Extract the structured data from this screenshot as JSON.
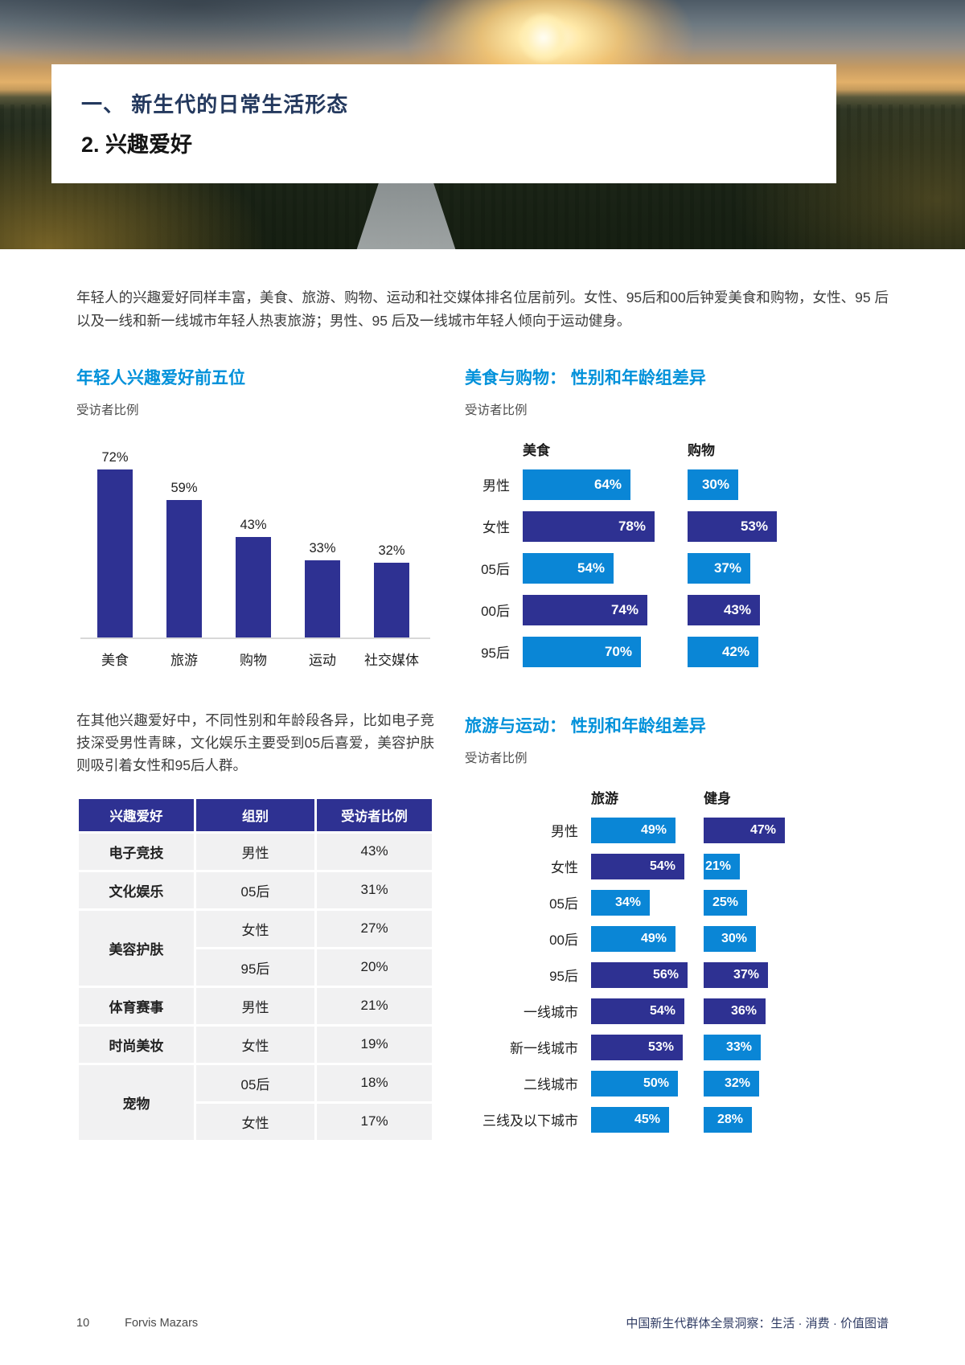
{
  "hero": {
    "title_line1": "一、 新生代的日常生活形态",
    "title_line2": "2. 兴趣爱好"
  },
  "intro": "年轻人的兴趣爱好同样丰富，美食、旅游、购物、运动和社交媒体排名位居前列。女性、95后和00后钟爱美食和购物，女性、95 后以及一线和新一线城市年轻人热衷旅游；男性、95 后及一线城市年轻人倾向于运动健身。",
  "middle_paragraph": "在其他兴趣爱好中，不同性别和年龄段各异，比如电子竞技深受男性青睐，文化娱乐主要受到05后喜爱，美容护肤则吸引着女性和95后人群。",
  "colors": {
    "navy": "#2E3192",
    "azure": "#0A86D6",
    "heading_blue": "#0091DA"
  },
  "charts": {
    "top5": {
      "type": "bar",
      "title": "年轻人兴趣爱好前五位",
      "subtitle": "受访者比例",
      "categories": [
        "美食",
        "旅游",
        "购物",
        "运动",
        "社交媒体"
      ],
      "values": [
        72,
        59,
        43,
        33,
        32
      ],
      "labels": [
        "72%",
        "59%",
        "43%",
        "33%",
        "32%"
      ]
    },
    "food_shopping": {
      "type": "grouped-horizontal-bar",
      "title": "美食与购物： 性别和年龄组差异",
      "subtitle": "受访者比例",
      "columns": [
        "美食",
        "购物"
      ],
      "rows": [
        {
          "label": "男性",
          "bars": [
            {
              "value": 64,
              "label": "64%",
              "shade": "light"
            },
            {
              "value": 30,
              "label": "30%",
              "shade": "light"
            }
          ]
        },
        {
          "label": "女性",
          "bars": [
            {
              "value": 78,
              "label": "78%",
              "shade": "dark"
            },
            {
              "value": 53,
              "label": "53%",
              "shade": "dark"
            }
          ]
        },
        {
          "label": "05后",
          "bars": [
            {
              "value": 54,
              "label": "54%",
              "shade": "light"
            },
            {
              "value": 37,
              "label": "37%",
              "shade": "light"
            }
          ]
        },
        {
          "label": "00后",
          "bars": [
            {
              "value": 74,
              "label": "74%",
              "shade": "dark"
            },
            {
              "value": 43,
              "label": "43%",
              "shade": "dark"
            }
          ]
        },
        {
          "label": "95后",
          "bars": [
            {
              "value": 70,
              "label": "70%",
              "shade": "light"
            },
            {
              "value": 42,
              "label": "42%",
              "shade": "light"
            }
          ]
        }
      ]
    },
    "travel_fitness": {
      "type": "grouped-horizontal-bar",
      "title": "旅游与运动： 性别和年龄组差异",
      "subtitle": "受访者比例",
      "columns": [
        "旅游",
        "健身"
      ],
      "rows": [
        {
          "label": "男性",
          "bars": [
            {
              "value": 49,
              "label": "49%",
              "shade": "light"
            },
            {
              "value": 47,
              "label": "47%",
              "shade": "dark"
            }
          ]
        },
        {
          "label": "女性",
          "bars": [
            {
              "value": 54,
              "label": "54%",
              "shade": "dark"
            },
            {
              "value": 21,
              "label": "21%",
              "shade": "light"
            }
          ]
        },
        {
          "label": "05后",
          "bars": [
            {
              "value": 34,
              "label": "34%",
              "shade": "light"
            },
            {
              "value": 25,
              "label": "25%",
              "shade": "light"
            }
          ]
        },
        {
          "label": "00后",
          "bars": [
            {
              "value": 49,
              "label": "49%",
              "shade": "light"
            },
            {
              "value": 30,
              "label": "30%",
              "shade": "light"
            }
          ]
        },
        {
          "label": "95后",
          "bars": [
            {
              "value": 56,
              "label": "56%",
              "shade": "dark"
            },
            {
              "value": 37,
              "label": "37%",
              "shade": "dark"
            }
          ]
        },
        {
          "label": "一线城市",
          "bars": [
            {
              "value": 54,
              "label": "54%",
              "shade": "dark"
            },
            {
              "value": 36,
              "label": "36%",
              "shade": "dark"
            }
          ]
        },
        {
          "label": "新一线城市",
          "bars": [
            {
              "value": 53,
              "label": "53%",
              "shade": "dark"
            },
            {
              "value": 33,
              "label": "33%",
              "shade": "light"
            }
          ]
        },
        {
          "label": "二线城市",
          "bars": [
            {
              "value": 50,
              "label": "50%",
              "shade": "light"
            },
            {
              "value": 32,
              "label": "32%",
              "shade": "light"
            }
          ]
        },
        {
          "label": "三线及以下城市",
          "bars": [
            {
              "value": 45,
              "label": "45%",
              "shade": "light"
            },
            {
              "value": 28,
              "label": "28%",
              "shade": "light"
            }
          ]
        }
      ]
    }
  },
  "table": {
    "headers": [
      "兴趣爱好",
      "组别",
      "受访者比例"
    ],
    "groups": [
      {
        "interest": "电子竞技",
        "entries": [
          {
            "group": "男性",
            "value": "43%"
          }
        ]
      },
      {
        "interest": "文化娱乐",
        "entries": [
          {
            "group": "05后",
            "value": "31%"
          }
        ]
      },
      {
        "interest": "美容护肤",
        "entries": [
          {
            "group": "女性",
            "value": "27%"
          },
          {
            "group": "95后",
            "value": "20%"
          }
        ]
      },
      {
        "interest": "体育赛事",
        "entries": [
          {
            "group": "男性",
            "value": "21%"
          }
        ]
      },
      {
        "interest": "时尚美妆",
        "entries": [
          {
            "group": "女性",
            "value": "19%"
          }
        ]
      },
      {
        "interest": "宠物",
        "entries": [
          {
            "group": "05后",
            "value": "18%"
          },
          {
            "group": "女性",
            "value": "17%"
          }
        ]
      }
    ]
  },
  "footer": {
    "page_number": "10",
    "brand": "Forvis Mazars",
    "right_text": "中国新生代群体全景洞察：生活 · 消费 · 价值图谱"
  }
}
